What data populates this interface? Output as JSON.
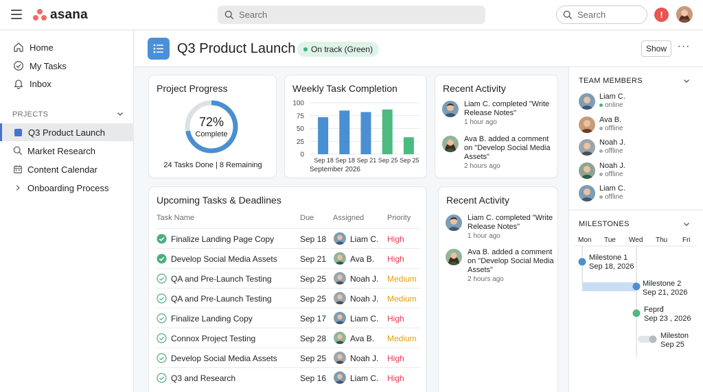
{
  "app": {
    "logo_text": "asana"
  },
  "topbar": {
    "search_placeholder": "Search",
    "search_right_placeholder": "Search",
    "alert_label": "!",
    "colors": {
      "brand": "#f06a6a",
      "alert": "#e8564f"
    }
  },
  "sidebar": {
    "nav": [
      {
        "label": "Home",
        "icon": "home-icon"
      },
      {
        "label": "My Tasks",
        "icon": "check-circle-icon"
      },
      {
        "label": "Inbox",
        "icon": "bell-icon"
      }
    ],
    "section_label": "PRJECTS",
    "projects": [
      {
        "label": "Q3 Product Launch",
        "icon": "project-square-icon",
        "active": true
      },
      {
        "label": "Market Research",
        "icon": "search-icon"
      },
      {
        "label": "Content Calendar",
        "icon": "calendar-icon"
      },
      {
        "label": "Onboarding Process",
        "icon": "chevron-right-icon"
      }
    ]
  },
  "project": {
    "title": "Q3 Product Launch",
    "status": "On track (Green)",
    "show_label": "Show",
    "more_label": "···",
    "icon": "list-icon",
    "accent": "#4a90d9"
  },
  "progress": {
    "title": "Project Progress",
    "percent_label": "72%",
    "percent": 0.72,
    "sub_label": "Complete",
    "summary": "24 Tasks Done | 8 Remaining"
  },
  "weekly": {
    "title": "Weekly Task Completion",
    "x_caption": "September 2026"
  },
  "chart_data": {
    "type": "bar",
    "title": "Weekly Task Completion",
    "categories": [
      "Sep 18",
      "Sep 18",
      "Sep 21",
      "Sep 25",
      "Sep 25"
    ],
    "values": [
      72,
      85,
      82,
      87,
      33
    ],
    "colors": [
      "#4a8fd1",
      "#4a8fd1",
      "#4a8fd1",
      "#4cba81",
      "#4cba81"
    ],
    "ylim": [
      0,
      100
    ],
    "yticks": [
      0,
      25,
      50,
      75,
      100
    ],
    "xlabel": "September 2026",
    "ylabel": "",
    "grid": true
  },
  "activity_top": {
    "title": "Recent Activity",
    "items": [
      {
        "text": "Liam C. completed \"Write Release Notes\"",
        "time": "1 hour ago"
      },
      {
        "text": "Ava B. added a comment on \"Develop Social Media Assets\"",
        "time": "2 hours ago"
      }
    ]
  },
  "activity_bottom": {
    "title": "Recent Activity",
    "items": [
      {
        "text": "Liam C. completed \"Write Release Notes\"",
        "time": "1 hour ago"
      },
      {
        "text": "Ava B. added a comment on \"Develop Social Media Assets\"",
        "time": "2 hours ago"
      }
    ]
  },
  "tasks": {
    "title": "Upcoming Tasks & Deadlines",
    "headers": {
      "name": "Task Name",
      "due": "Due",
      "assigned": "Assigned",
      "priority": "Priority"
    },
    "rows": [
      {
        "name": "Finalize Landing Page Copy",
        "due": "Sep 18",
        "assigned": "Liam C.",
        "priority": "High",
        "done": true
      },
      {
        "name": "Develop Social Media Assets",
        "due": "Sep 21",
        "assigned": "Ava B.",
        "priority": "High",
        "done": true
      },
      {
        "name": "QA and Pre-Launch Testing",
        "due": "Sep 25",
        "assigned": "Noah J.",
        "priority": "Medium",
        "done": false
      },
      {
        "name": "QA and Pre-Launch Testing",
        "due": "Sep 25",
        "assigned": "Noah J.",
        "priority": "Medium",
        "done": false
      },
      {
        "name": "Finalize Landing Copy",
        "due": "Sep 17",
        "assigned": "Liam C.",
        "priority": "High",
        "done": false
      },
      {
        "name": "Connox Project Testing",
        "due": "Sep 28",
        "assigned": "Ava B.",
        "priority": "Medium",
        "done": false
      },
      {
        "name": "Develop Social Media Assets",
        "due": "Sep 25",
        "assigned": "Noah J.",
        "priority": "High",
        "done": false
      },
      {
        "name": "Q3  and Research",
        "due": "Sep 16",
        "assigned": "Liam C.",
        "priority": "High",
        "done": false
      }
    ],
    "priority_colors": {
      "High": "#e8384f",
      "Medium": "#e0a10a"
    }
  },
  "team": {
    "title": "TEAM MEMBERS",
    "members": [
      {
        "name": "Liam C.",
        "status": "online"
      },
      {
        "name": "Ava B.",
        "status": "offline"
      },
      {
        "name": "Noah J.",
        "status": "offline"
      },
      {
        "name": "Noah J.",
        "status": "offline"
      },
      {
        "name": "Liam C.",
        "status": "offline"
      }
    ]
  },
  "milestones": {
    "title": "MILESTONES",
    "days": [
      "Mon",
      "Tue",
      "Wed",
      "Thu",
      "Fri"
    ],
    "items": [
      {
        "name": "Milestone 1",
        "date": "Sep 18, 2026"
      },
      {
        "name": "Milestone 2",
        "date": "Sep 21, 2026"
      },
      {
        "name": "Feprđ",
        "date": "Sep 23 , 2026"
      },
      {
        "name": "Mileston",
        "date": "Sep 25"
      }
    ]
  }
}
